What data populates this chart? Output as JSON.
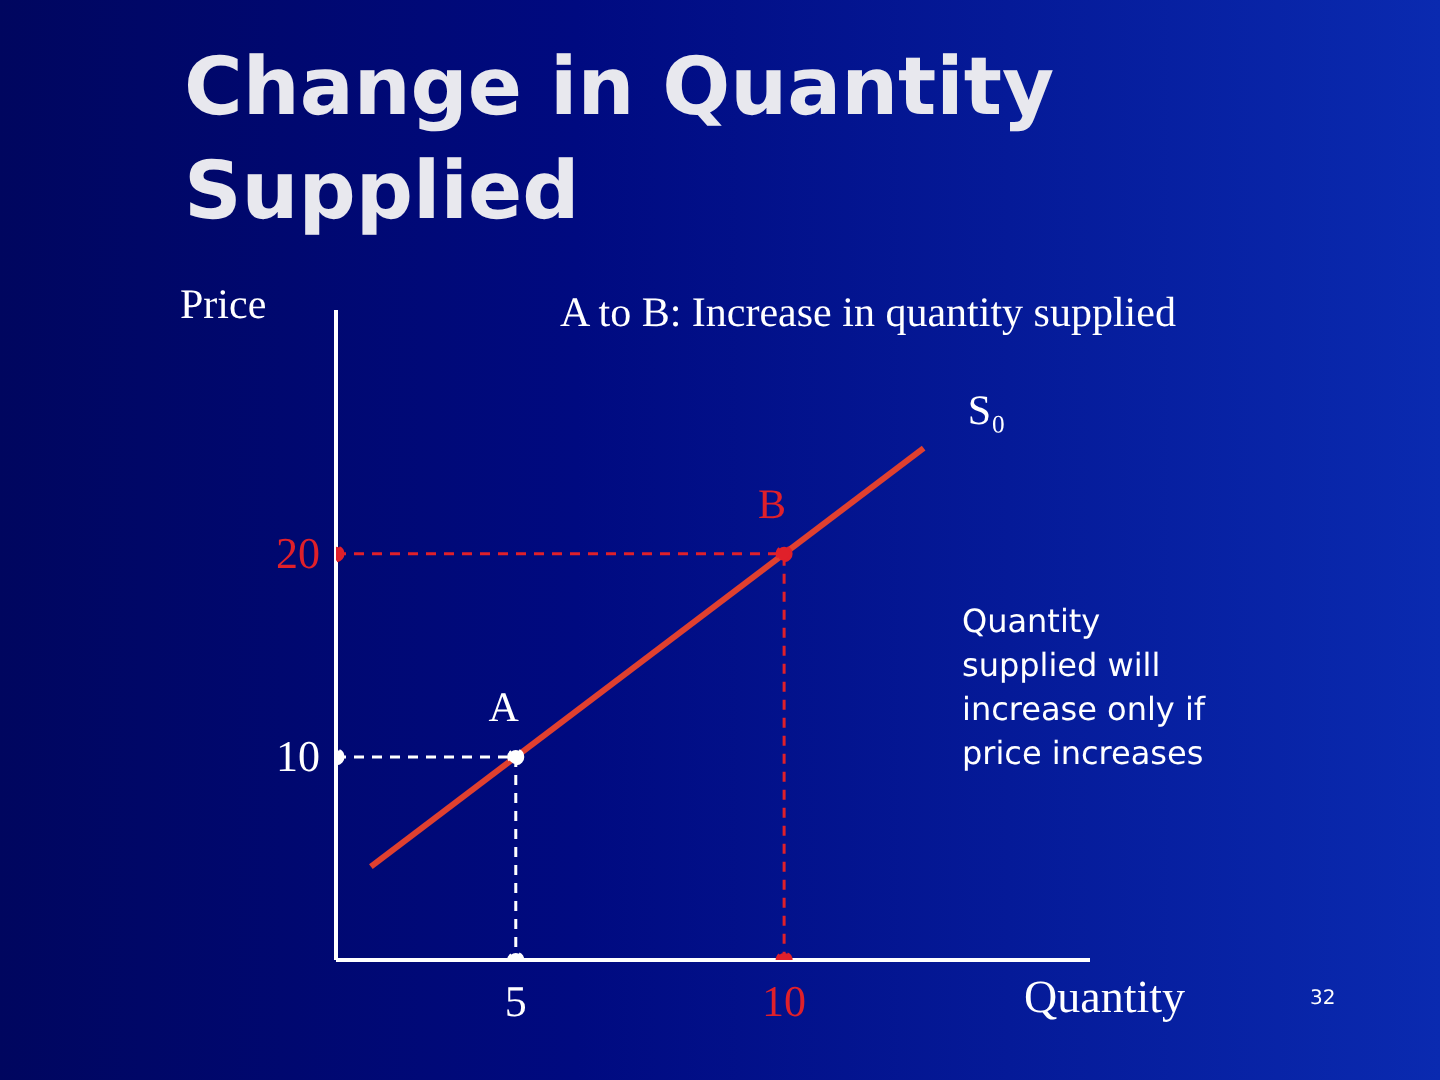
{
  "chart_data": {
    "type": "line",
    "title": "Change in Quantity Supplied",
    "subtitle": "A to B: Increase in quantity supplied",
    "xlabel": "Quantity",
    "ylabel": "Price",
    "x": [
      2.3,
      12.6
    ],
    "series": [
      {
        "name": "S₀",
        "color": "#e0402f",
        "values": [
          4.6,
          25.2
        ],
        "marker": "none",
        "line_style": "solid"
      },
      {
        "color": "#ffffff",
        "x": [
          1.65,
          5,
          5
        ],
        "values": [
          10,
          10,
          0
        ],
        "marker": "circle",
        "line_style": "dashed"
      },
      {
        "color": "#e0202a",
        "x": [
          1.65,
          10,
          10
        ],
        "values": [
          20,
          20,
          0
        ],
        "marker": "circle",
        "line_style": "dashed"
      }
    ],
    "xlim": [
      1.65,
      15.7
    ],
    "ylim": [
      0,
      32
    ],
    "xticks": [
      5,
      10
    ],
    "yticks": [
      10,
      20
    ],
    "grid": false,
    "legend": false,
    "annotations": [
      {
        "text": "A",
        "x": 5,
        "y": 10
      },
      {
        "text": "B",
        "x": 10,
        "y": 20
      },
      "Quantity supplied will increase only if price increases",
      "32"
    ]
  }
}
